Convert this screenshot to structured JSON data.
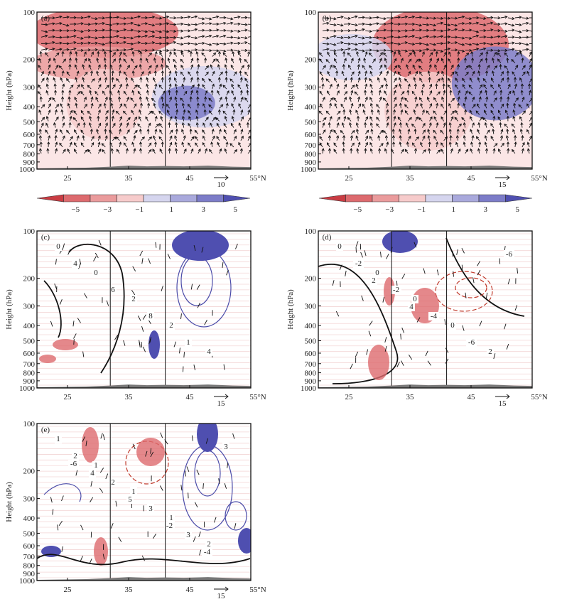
{
  "chart_data": {
    "type": "cross-section",
    "xlabel": "°N",
    "x_ticks": [
      25,
      35,
      45,
      55
    ],
    "x_unit": "°N",
    "x_range": [
      20,
      55
    ],
    "ylabel": "Height (hPa)",
    "y_ticks": [
      100,
      200,
      300,
      400,
      500,
      600,
      700,
      800,
      900,
      1000
    ],
    "y_range": [
      100,
      1000
    ],
    "vertical_lines_lat": [
      32,
      41
    ],
    "colorbar": {
      "ticks": [
        -5,
        -3,
        -1,
        1,
        3,
        5
      ],
      "colors": [
        "#c93c43",
        "#dd6a6e",
        "#ea9b9c",
        "#f6cbcb",
        "#d5d5ee",
        "#a9a9dc",
        "#7c7cc8",
        "#4f4fb0"
      ]
    },
    "panels": [
      {
        "label": "(a)",
        "type": "shaded wind vectors",
        "ref_vector": "10",
        "shading": [
          {
            "lat": [
              20,
              42
            ],
            "p": [
              100,
              180
            ],
            "value": -3
          },
          {
            "lat": [
              20,
              40
            ],
            "p": [
              180,
              250
            ],
            "value": -2
          },
          {
            "lat": [
              26,
              36
            ],
            "p": [
              250,
              600
            ],
            "value": -1
          },
          {
            "lat": [
              40,
              55
            ],
            "p": [
              240,
              500
            ],
            "value": 1
          },
          {
            "lat": [
              41,
              48
            ],
            "p": [
              320,
              450
            ],
            "value": 3
          }
        ]
      },
      {
        "label": "(b)",
        "type": "shaded wind vectors",
        "ref_vector": "15",
        "shading": [
          {
            "lat": [
              30,
              50
            ],
            "p": [
              100,
              260
            ],
            "value": -3
          },
          {
            "lat": [
              32,
              44
            ],
            "p": [
              260,
              700
            ],
            "value": -1
          },
          {
            "lat": [
              43,
              55
            ],
            "p": [
              180,
              450
            ],
            "value": 3
          },
          {
            "lat": [
              20,
              31
            ],
            "p": [
              150,
              250
            ],
            "value": 1
          }
        ]
      },
      {
        "label": "(c)",
        "type": "contours",
        "ref_vector": "15",
        "contour_labels": [
          "0",
          "0",
          "2",
          "2",
          "4",
          "4",
          "6",
          "8",
          "1"
        ]
      },
      {
        "label": "(d)",
        "type": "contours",
        "ref_vector": "15",
        "contour_labels": [
          "0",
          "0",
          "0",
          "0",
          "2",
          "-2",
          "-2",
          "-4",
          "-6",
          "-6",
          "2",
          "4"
        ]
      },
      {
        "label": "(e)",
        "type": "contours",
        "ref_vector": "15",
        "contour_labels": [
          "1",
          "1",
          "1",
          "1",
          "2",
          "2",
          "2",
          "3",
          "3",
          "3",
          "4",
          "5",
          "-2",
          "-4",
          "-6"
        ]
      }
    ]
  }
}
